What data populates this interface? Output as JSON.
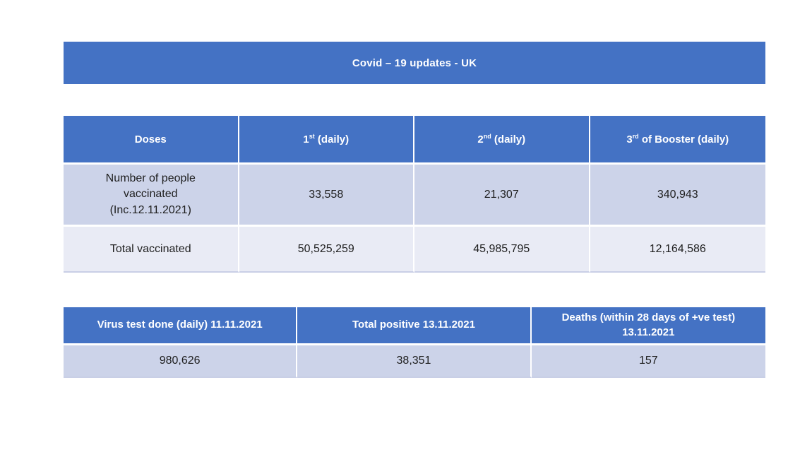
{
  "banner": {
    "title": "Covid – 19 updates - UK"
  },
  "colors": {
    "header_blue": "#4472C4",
    "band_dark": "#CCD3E9",
    "band_light": "#E9EBF5",
    "header_text": "#FFFFFF",
    "body_text": "#1E1E1E"
  },
  "vaccine_table": {
    "headers": {
      "doses": "Doses",
      "first": {
        "num": "1",
        "sup": "st",
        "rest": " (daily)"
      },
      "second": {
        "num": "2",
        "sup": "nd",
        "rest": " (daily)"
      },
      "third": {
        "num": "3",
        "sup": "rd",
        "rest": " of Booster (daily)"
      }
    },
    "rows": [
      {
        "label": "Number of people vaccinated (Inc.12.11.2021)",
        "values": [
          "33,558",
          "21,307",
          "340,943"
        ]
      },
      {
        "label": "Total vaccinated",
        "values": [
          "50,525,259",
          "45,985,795",
          "12,164,586"
        ]
      }
    ]
  },
  "stats_table": {
    "headers": [
      "Virus test done (daily) 11.11.2021",
      "Total positive 13.11.2021",
      "Deaths (within 28 days of +ve test) 13.11.2021"
    ],
    "values": [
      "980,626",
      "38,351",
      "157"
    ]
  }
}
